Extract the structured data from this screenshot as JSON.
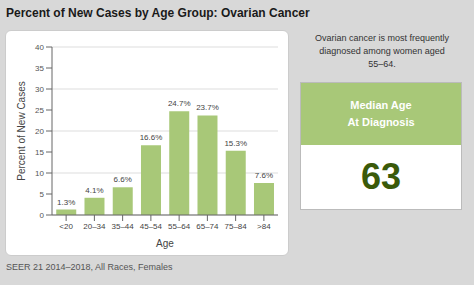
{
  "chart_data": {
    "type": "bar",
    "title": "Percent of New Cases by Age Group: Ovarian Cancer",
    "categories": [
      "<20",
      "20–34",
      "35–44",
      "45–54",
      "55–64",
      "65–74",
      "75–84",
      ">84"
    ],
    "values": [
      1.3,
      4.1,
      6.6,
      16.6,
      24.7,
      23.7,
      15.3,
      7.6
    ],
    "value_labels": [
      "1.3%",
      "4.1%",
      "6.6%",
      "16.6%",
      "24.7%",
      "23.7%",
      "15.3%",
      "7.6%"
    ],
    "data_labels": true,
    "color": "#a8c878",
    "xlabel": "Age",
    "ylabel": "Percent of New Cases",
    "ylim": [
      0,
      40
    ],
    "yticks": [
      0,
      5,
      10,
      15,
      20,
      25,
      30,
      35,
      40
    ],
    "grid": true,
    "annotations": [
      "Ovarian cancer is most frequently\ndiagnosed among women aged\n55–64.",
      "Median Age",
      "At Diagnosis",
      "63",
      "SEER 21 2014–2018, All Races, Females"
    ]
  }
}
